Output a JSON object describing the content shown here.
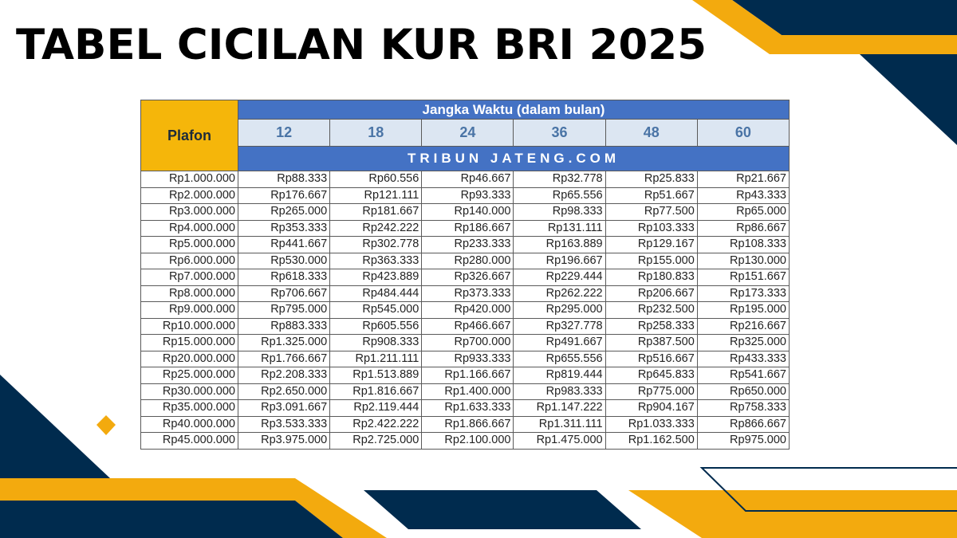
{
  "title": "TABEL CICILAN KUR BRI 2025",
  "colors": {
    "navy": "#002b4e",
    "orange": "#f3aa0e",
    "header_blue": "#4472c4",
    "plafon_yellow": "#f5b60a"
  },
  "table": {
    "plafon_header": "Plafon",
    "period_header": "Jangka Waktu (dalam bulan)",
    "terms": [
      "12",
      "18",
      "24",
      "36",
      "48",
      "60"
    ],
    "watermark": "TRIBUN JATENG.COM",
    "rows": [
      [
        "Rp1.000.000",
        "Rp88.333",
        "Rp60.556",
        "Rp46.667",
        "Rp32.778",
        "Rp25.833",
        "Rp21.667"
      ],
      [
        "Rp2.000.000",
        "Rp176.667",
        "Rp121.111",
        "Rp93.333",
        "Rp65.556",
        "Rp51.667",
        "Rp43.333"
      ],
      [
        "Rp3.000.000",
        "Rp265.000",
        "Rp181.667",
        "Rp140.000",
        "Rp98.333",
        "Rp77.500",
        "Rp65.000"
      ],
      [
        "Rp4.000.000",
        "Rp353.333",
        "Rp242.222",
        "Rp186.667",
        "Rp131.111",
        "Rp103.333",
        "Rp86.667"
      ],
      [
        "Rp5.000.000",
        "Rp441.667",
        "Rp302.778",
        "Rp233.333",
        "Rp163.889",
        "Rp129.167",
        "Rp108.333"
      ],
      [
        "Rp6.000.000",
        "Rp530.000",
        "Rp363.333",
        "Rp280.000",
        "Rp196.667",
        "Rp155.000",
        "Rp130.000"
      ],
      [
        "Rp7.000.000",
        "Rp618.333",
        "Rp423.889",
        "Rp326.667",
        "Rp229.444",
        "Rp180.833",
        "Rp151.667"
      ],
      [
        "Rp8.000.000",
        "Rp706.667",
        "Rp484.444",
        "Rp373.333",
        "Rp262.222",
        "Rp206.667",
        "Rp173.333"
      ],
      [
        "Rp9.000.000",
        "Rp795.000",
        "Rp545.000",
        "Rp420.000",
        "Rp295.000",
        "Rp232.500",
        "Rp195.000"
      ],
      [
        "Rp10.000.000",
        "Rp883.333",
        "Rp605.556",
        "Rp466.667",
        "Rp327.778",
        "Rp258.333",
        "Rp216.667"
      ],
      [
        "Rp15.000.000",
        "Rp1.325.000",
        "Rp908.333",
        "Rp700.000",
        "Rp491.667",
        "Rp387.500",
        "Rp325.000"
      ],
      [
        "Rp20.000.000",
        "Rp1.766.667",
        "Rp1.211.111",
        "Rp933.333",
        "Rp655.556",
        "Rp516.667",
        "Rp433.333"
      ],
      [
        "Rp25.000.000",
        "Rp2.208.333",
        "Rp1.513.889",
        "Rp1.166.667",
        "Rp819.444",
        "Rp645.833",
        "Rp541.667"
      ],
      [
        "Rp30.000.000",
        "Rp2.650.000",
        "Rp1.816.667",
        "Rp1.400.000",
        "Rp983.333",
        "Rp775.000",
        "Rp650.000"
      ],
      [
        "Rp35.000.000",
        "Rp3.091.667",
        "Rp2.119.444",
        "Rp1.633.333",
        "Rp1.147.222",
        "Rp904.167",
        "Rp758.333"
      ],
      [
        "Rp40.000.000",
        "Rp3.533.333",
        "Rp2.422.222",
        "Rp1.866.667",
        "Rp1.311.111",
        "Rp1.033.333",
        "Rp866.667"
      ],
      [
        "Rp45.000.000",
        "Rp3.975.000",
        "Rp2.725.000",
        "Rp2.100.000",
        "Rp1.475.000",
        "Rp1.162.500",
        "Rp975.000"
      ]
    ]
  }
}
